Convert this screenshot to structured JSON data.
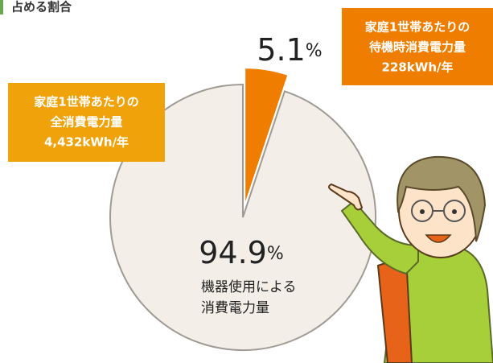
{
  "chart_data": {
    "type": "pie",
    "title": "占める割合",
    "values": [
      94.9,
      5.1
    ],
    "unit": "%",
    "colors": [
      "#f3efe8",
      "#ef7d00"
    ],
    "exploded": [
      false,
      true
    ],
    "annotations": [
      {
        "lines": [
          "家庭1世帯あたりの",
          "全消費電力量",
          "4,432kWh/年"
        ],
        "color": "#f0a20a"
      },
      {
        "lines": [
          "家庭1世帯あたりの",
          "待機時消費電力量",
          "228kWh/年"
        ],
        "color": "#ef7d00"
      },
      {
        "lines": [
          "機器使用による",
          "消費電力量"
        ]
      }
    ]
  }
}
